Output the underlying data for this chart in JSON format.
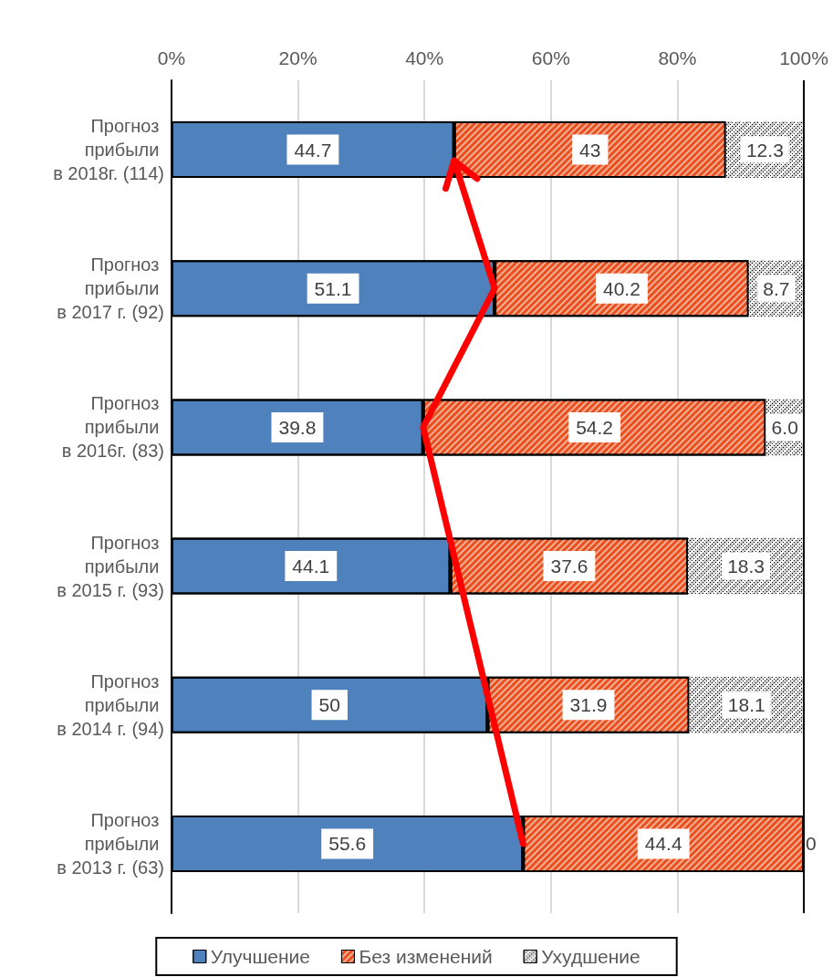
{
  "chart_data": {
    "type": "bar",
    "orientation": "horizontal",
    "stacked": true,
    "categories": [
      "Прогноз прибыли в 2018г. (114)",
      "Прогноз прибыли в 2017 г. (92)",
      "Прогноз прибыли в 2016г. (83)",
      "Прогноз прибыли в 2015 г. (93)",
      "Прогноз прибыли в 2014 г. (94)",
      "Прогноз прибыли в 2013 г. (63)"
    ],
    "series": [
      {
        "name": "Улучшение",
        "color": "#4f81bd",
        "values": [
          44.7,
          51.1,
          39.8,
          44.1,
          50,
          55.6
        ],
        "value_labels": [
          "44.7",
          "51.1",
          "39.8",
          "44.1",
          "50",
          "55.6"
        ]
      },
      {
        "name": "Без изменений",
        "color": "#e8501e",
        "values": [
          43,
          40.2,
          54.2,
          37.6,
          31.9,
          44.4
        ],
        "value_labels": [
          "43",
          "40.2",
          "54.2",
          "37.6",
          "31.9",
          "44.4"
        ]
      },
      {
        "name": "Ухудшение",
        "color": "#000000",
        "values": [
          12.3,
          8.7,
          6.0,
          18.3,
          18.1,
          0
        ],
        "value_labels": [
          "12.3",
          "8.7",
          "6.0",
          "18.3",
          "18.1",
          "0"
        ]
      }
    ],
    "xlim": [
      0,
      100
    ],
    "xticks": [
      {
        "value": 0,
        "label": "0%"
      },
      {
        "value": 20,
        "label": "20%"
      },
      {
        "value": 40,
        "label": "40%"
      },
      {
        "value": 60,
        "label": "60%"
      },
      {
        "value": 80,
        "label": "80%"
      },
      {
        "value": 100,
        "label": "100%"
      }
    ],
    "grid": "x",
    "legend": "bottom"
  }
}
